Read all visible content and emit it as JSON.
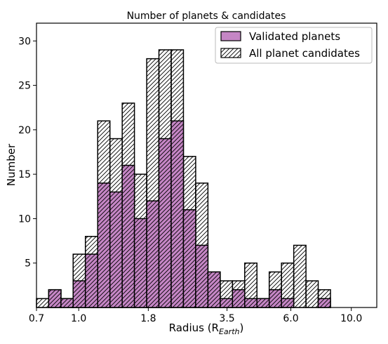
{
  "chart_data": {
    "type": "bar",
    "title": "Number of planets & candidates",
    "xlabel": "Radius (R",
    "xlabel_sub": "Earth",
    "xlabel_close": ")",
    "ylabel": "Number",
    "x_scale": "log",
    "xlim": [
      0.7,
      12.4
    ],
    "ylim": [
      0,
      32
    ],
    "x_ticks": [
      {
        "value": 0.7,
        "label": "0.7"
      },
      {
        "value": 1.0,
        "label": "1.0"
      },
      {
        "value": 1.8,
        "label": "1.8"
      },
      {
        "value": 3.5,
        "label": "3.5"
      },
      {
        "value": 6.0,
        "label": "6.0"
      },
      {
        "value": 10.0,
        "label": "10.0"
      }
    ],
    "y_ticks": [
      {
        "value": 5,
        "label": "5"
      },
      {
        "value": 10,
        "label": "10"
      },
      {
        "value": 15,
        "label": "15"
      },
      {
        "value": 20,
        "label": "20"
      },
      {
        "value": 25,
        "label": "25"
      },
      {
        "value": 30,
        "label": "30"
      }
    ],
    "bin_edges": [
      0.7,
      0.776,
      0.861,
      0.954,
      1.058,
      1.174,
      1.302,
      1.444,
      1.601,
      1.776,
      1.969,
      2.184,
      2.422,
      2.686,
      2.979,
      3.304,
      3.665,
      4.064,
      4.507,
      4.999,
      5.544,
      6.149,
      6.819,
      7.562,
      8.387,
      9.302,
      10.316,
      11.441,
      12.4
    ],
    "series": [
      {
        "name": "All planet candidates",
        "values": [
          1,
          2,
          1,
          6,
          8,
          21,
          19,
          23,
          15,
          28,
          29,
          29,
          17,
          14,
          4,
          3,
          3,
          5,
          1,
          4,
          5,
          7,
          3,
          2
        ],
        "bins_used": 24
      },
      {
        "name": "Validated planets",
        "values": [
          0,
          2,
          1,
          3,
          6,
          14,
          13,
          16,
          10,
          12,
          19,
          21,
          11,
          7,
          4,
          1,
          2,
          1,
          1,
          2,
          1,
          0,
          0,
          1
        ],
        "bins_used": 24
      }
    ],
    "colors": {
      "validated_fill": "#c586c5",
      "candidate_fill": "#ffffff",
      "edge": "#000000"
    },
    "legend": {
      "position": "top-right",
      "entries": [
        {
          "label": "Validated planets",
          "style": "solid"
        },
        {
          "label": "All planet candidates",
          "style": "hatched"
        }
      ]
    },
    "grid": false
  }
}
